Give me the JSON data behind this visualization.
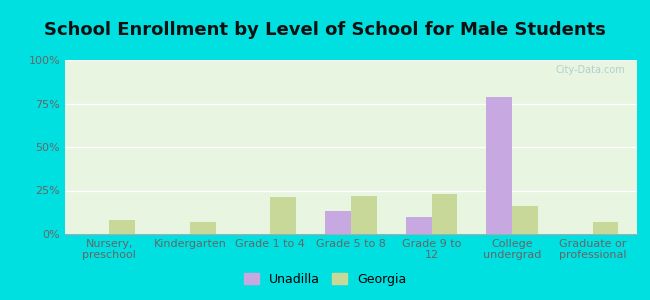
{
  "title": "School Enrollment by Level of School for Male Students",
  "categories": [
    "Nursery,\npreschool",
    "Kindergarten",
    "Grade 1 to 4",
    "Grade 5 to 8",
    "Grade 9 to\n12",
    "College\nundergrad",
    "Graduate or\nprofessional"
  ],
  "unadilla": [
    0.0,
    0.0,
    0.0,
    13.0,
    10.0,
    79.0,
    0.0
  ],
  "georgia": [
    8.0,
    7.0,
    21.0,
    22.0,
    23.0,
    16.0,
    7.0
  ],
  "unadilla_color": "#c8a8e0",
  "georgia_color": "#c8d898",
  "background_outer": "#00e0e0",
  "background_plot": "#e8f5e0",
  "yticks": [
    0,
    25,
    50,
    75,
    100
  ],
  "ytick_labels": [
    "0%",
    "25%",
    "50%",
    "75%",
    "100%"
  ],
  "legend_unadilla": "Unadilla",
  "legend_georgia": "Georgia",
  "title_fontsize": 13,
  "tick_fontsize": 8,
  "legend_fontsize": 9,
  "watermark": "City-Data.com"
}
